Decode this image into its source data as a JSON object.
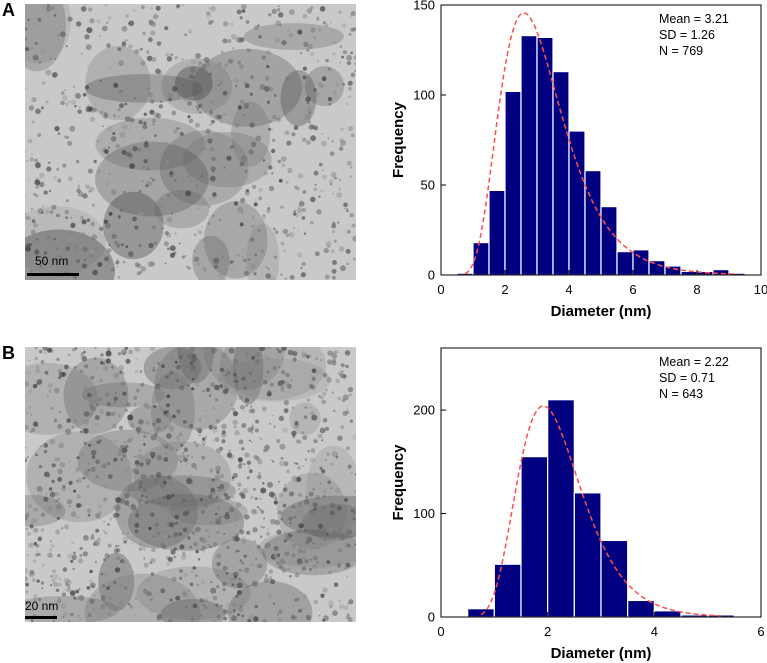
{
  "panels": [
    {
      "label": "A",
      "micrograph": {
        "scale_bar": "50 nm",
        "seed": 11,
        "density": 0.55
      }
    },
    {
      "label": "B",
      "micrograph": {
        "scale_bar": "20 nm",
        "seed": 29,
        "density": 0.85
      }
    }
  ],
  "colors": {
    "bar": "#000080",
    "fit": "#ff4d4d",
    "axis": "#000000"
  },
  "chart_data": [
    {
      "type": "bar",
      "xlabel": "Diameter (nm)",
      "ylabel": "Frequency",
      "xlim": [
        0,
        10
      ],
      "ylim": [
        0,
        150
      ],
      "xticks": [
        0,
        2,
        4,
        6,
        8,
        10
      ],
      "yticks": [
        0,
        50,
        100,
        150
      ],
      "bin_width": 0.5,
      "bin_centers": [
        0.75,
        1.25,
        1.75,
        2.25,
        2.75,
        3.25,
        3.75,
        4.25,
        4.75,
        5.25,
        5.75,
        6.25,
        6.75,
        7.25,
        7.75,
        8.25,
        8.75,
        9.25
      ],
      "values": [
        1,
        18,
        47,
        102,
        133,
        132,
        113,
        80,
        58,
        38,
        13,
        14,
        8,
        5,
        2,
        2,
        3,
        1
      ],
      "fit": {
        "type": "lognormal",
        "mean": 3.21,
        "sd": 1.26,
        "n": 769
      },
      "annotations": [
        "Mean = 3.21",
        "SD = 1.26",
        "N = 769"
      ],
      "grid": false
    },
    {
      "type": "bar",
      "xlabel": "Diameter (nm)",
      "ylabel": "Frequency",
      "xlim": [
        0,
        6
      ],
      "ylim": [
        0,
        260
      ],
      "xticks": [
        0,
        2,
        4,
        6
      ],
      "yticks": [
        0,
        100,
        200
      ],
      "bin_width": 0.5,
      "bin_centers": [
        0.75,
        1.25,
        1.75,
        2.25,
        2.75,
        3.25,
        3.75,
        4.25,
        4.75,
        5.25
      ],
      "values": [
        8,
        51,
        155,
        210,
        120,
        74,
        16,
        6,
        2,
        2
      ],
      "fit": {
        "type": "lognormal",
        "mean": 2.22,
        "sd": 0.71,
        "n": 643
      },
      "annotations": [
        "Mean = 2.22",
        "SD = 0.71",
        "N = 643"
      ],
      "grid": false
    }
  ]
}
